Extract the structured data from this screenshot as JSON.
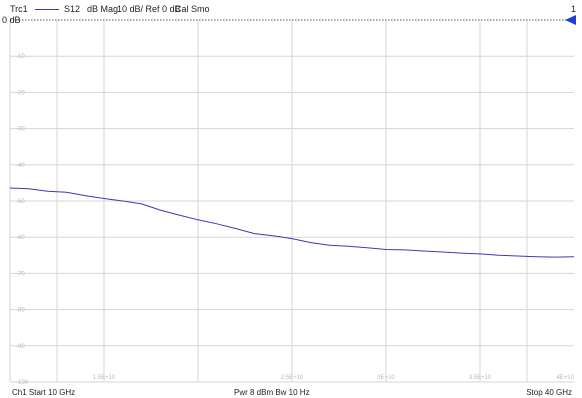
{
  "trace": {
    "name": "Trc1",
    "parameter": "S12",
    "format": "dB Mag",
    "scale": "10 dB/ Ref 0 dB",
    "flags": "Cal Smo",
    "marker_number": "1",
    "color": "#3a3ab8"
  },
  "reference_label": "0 dB",
  "footer": {
    "start": "Ch1  Start  10 GHz",
    "center": "Pwr  8 dBm  Bw  10 Hz",
    "stop": "Stop  40 GHz"
  },
  "colors": {
    "grid": "#d6d6d6",
    "reference_line": "#555555",
    "marker": "#1a3fd6"
  },
  "chart_data": {
    "type": "line",
    "xlim": [
      10,
      40
    ],
    "ylim": [
      -100,
      0
    ],
    "y_ticks": [
      0,
      -10,
      -20,
      -30,
      -40,
      -50,
      -60,
      -70,
      -80,
      -90,
      -100
    ],
    "y_tick_labels": [
      "",
      "-10",
      "-20",
      "-30",
      "-40",
      "-50",
      "-60",
      "-70",
      "-80",
      "-90",
      "-100"
    ],
    "x_tick_labels": [
      {
        "x": 15,
        "label": "1.5E+10"
      },
      {
        "x": 25,
        "label": "2.5E+10"
      },
      {
        "x": 30,
        "label": "3E+10"
      },
      {
        "x": 35,
        "label": "3.5E+10"
      },
      {
        "x": 40,
        "label": "4E+10"
      }
    ],
    "x_grid": [
      12.5,
      15,
      20,
      25,
      30,
      35,
      37.5
    ],
    "reference_level": 0,
    "series": [
      {
        "x": [
          10,
          11,
          12,
          13,
          14,
          15,
          16,
          17,
          18,
          19,
          20,
          21,
          22,
          23,
          24,
          25,
          26,
          27,
          28,
          29,
          30,
          31,
          32,
          33,
          34,
          35,
          36,
          37,
          38,
          39,
          40
        ],
        "values": [
          -46.4,
          -46.6,
          -47.3,
          -47.6,
          -48.5,
          -49.3,
          -50.0,
          -50.8,
          -52.5,
          -53.9,
          -55.2,
          -56.3,
          -57.6,
          -59.0,
          -59.6,
          -60.4,
          -61.5,
          -62.2,
          -62.5,
          -62.9,
          -63.4,
          -63.5,
          -63.8,
          -64.1,
          -64.4,
          -64.6,
          -65.0,
          -65.2,
          -65.4,
          -65.5,
          -65.4
        ]
      }
    ]
  }
}
